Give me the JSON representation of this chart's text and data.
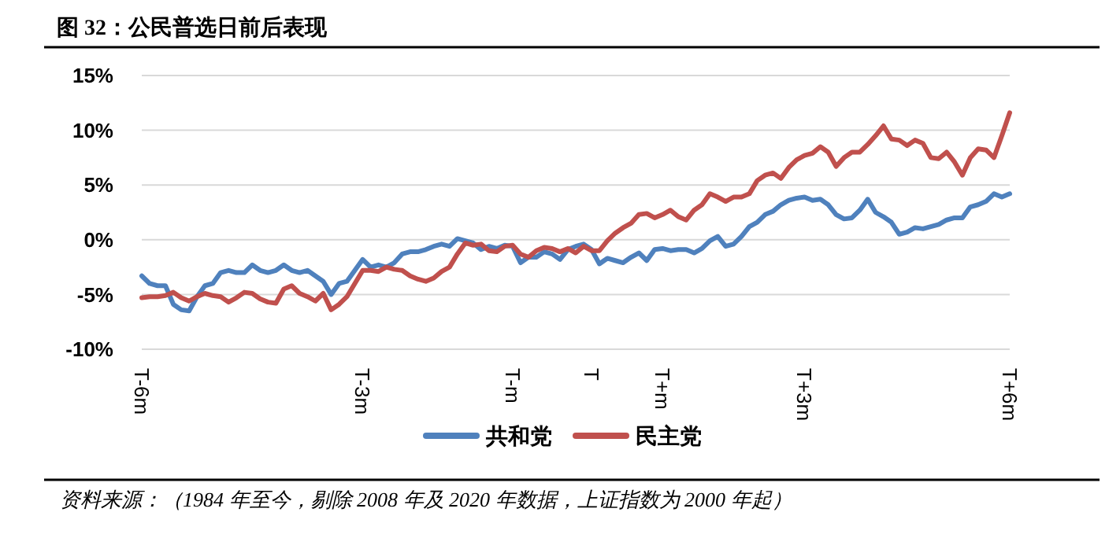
{
  "chart_data": {
    "type": "line",
    "title": "图 32：公民普选日前后表现",
    "annotations": [
      "资料来源：（1984 年至今，剔除 2008 年及 2020 年数据，上证指数为 2000 年起）"
    ],
    "categories": [
      "T-6m",
      null,
      null,
      null,
      null,
      null,
      null,
      null,
      null,
      null,
      null,
      null,
      null,
      null,
      null,
      null,
      null,
      null,
      null,
      null,
      null,
      null,
      null,
      null,
      null,
      null,
      null,
      null,
      "T-3m",
      null,
      null,
      null,
      null,
      null,
      null,
      null,
      null,
      null,
      null,
      null,
      null,
      null,
      null,
      null,
      null,
      null,
      null,
      "T-m",
      null,
      null,
      null,
      null,
      null,
      null,
      null,
      null,
      null,
      "T",
      null,
      null,
      null,
      null,
      null,
      null,
      null,
      null,
      "T+m",
      null,
      null,
      null,
      null,
      null,
      null,
      null,
      null,
      null,
      null,
      null,
      null,
      null,
      null,
      null,
      null,
      null,
      "T+3m",
      null,
      null,
      null,
      null,
      null,
      null,
      null,
      null,
      null,
      null,
      null,
      null,
      null,
      null,
      null,
      null,
      null,
      null,
      null,
      null,
      null,
      null,
      null,
      null,
      null,
      "T+6m"
    ],
    "series": [
      {
        "name": "共和党",
        "color": "#4f81bd",
        "values": [
          -3.3,
          -4.0,
          -4.2,
          -4.2,
          -5.9,
          -6.4,
          -6.5,
          -5.2,
          -4.2,
          -4.0,
          -3.0,
          -2.8,
          -3.0,
          -3.0,
          -2.3,
          -2.8,
          -3.0,
          -2.8,
          -2.3,
          -2.8,
          -3.0,
          -2.8,
          -3.3,
          -3.8,
          -5.0,
          -4.0,
          -3.8,
          -2.8,
          -1.8,
          -2.5,
          -2.3,
          -2.5,
          -2.1,
          -1.3,
          -1.1,
          -1.1,
          -0.9,
          -0.6,
          -0.4,
          -0.6,
          0.1,
          -0.1,
          -0.3,
          -0.9,
          -0.6,
          -0.8,
          -0.5,
          -0.6,
          -2.1,
          -1.6,
          -1.6,
          -1.1,
          -1.3,
          -1.8,
          -0.9,
          -0.6,
          -0.4,
          -0.9,
          -2.2,
          -1.7,
          -1.9,
          -2.1,
          -1.6,
          -1.2,
          -1.9,
          -0.9,
          -0.8,
          -1.0,
          -0.9,
          -0.9,
          -1.2,
          -0.8,
          -0.1,
          0.3,
          -0.6,
          -0.4,
          0.3,
          1.2,
          1.6,
          2.3,
          2.6,
          3.2,
          3.6,
          3.8,
          3.9,
          3.6,
          3.7,
          3.2,
          2.3,
          1.9,
          2.0,
          2.7,
          3.7,
          2.5,
          2.1,
          1.6,
          0.5,
          0.7,
          1.1,
          1.0,
          1.2,
          1.4,
          1.8,
          2.0,
          2.0,
          3.0,
          3.2,
          3.5,
          4.2,
          3.9,
          4.2
        ]
      },
      {
        "name": "民主党",
        "color": "#c0504d",
        "values": [
          -5.3,
          -5.2,
          -5.2,
          -5.1,
          -4.8,
          -5.3,
          -5.6,
          -5.2,
          -4.9,
          -5.1,
          -5.2,
          -5.7,
          -5.3,
          -4.8,
          -4.9,
          -5.4,
          -5.7,
          -5.8,
          -4.5,
          -4.2,
          -4.9,
          -5.2,
          -5.6,
          -4.9,
          -6.4,
          -5.9,
          -5.2,
          -4.0,
          -2.8,
          -2.8,
          -2.9,
          -2.5,
          -2.7,
          -2.8,
          -3.3,
          -3.6,
          -3.8,
          -3.5,
          -2.9,
          -2.5,
          -1.3,
          -0.3,
          -0.5,
          -0.4,
          -1.0,
          -1.1,
          -0.6,
          -0.5,
          -1.3,
          -1.6,
          -1.0,
          -0.7,
          -0.8,
          -1.1,
          -0.8,
          -1.2,
          -0.6,
          -1.0,
          -1.0,
          -0.1,
          0.6,
          1.1,
          1.5,
          2.3,
          2.4,
          2.0,
          2.3,
          2.7,
          2.1,
          1.8,
          2.7,
          3.2,
          4.2,
          3.9,
          3.5,
          3.9,
          3.9,
          4.2,
          5.4,
          5.9,
          6.1,
          5.6,
          6.6,
          7.3,
          7.7,
          7.9,
          8.5,
          8.0,
          6.7,
          7.5,
          8.0,
          8.0,
          8.7,
          9.5,
          10.4,
          9.2,
          9.1,
          8.6,
          9.1,
          8.8,
          7.5,
          7.4,
          8.0,
          7.1,
          5.9,
          7.5,
          8.3,
          8.2,
          7.5,
          9.5,
          11.6
        ]
      }
    ],
    "ylim": [
      -10,
      15
    ],
    "yticks": [
      {
        "value": -10,
        "label": "-10%"
      },
      {
        "value": -5,
        "label": "-5%"
      },
      {
        "value": 0,
        "label": "0%"
      },
      {
        "value": 5,
        "label": "5%"
      },
      {
        "value": 10,
        "label": "10%"
      },
      {
        "value": 15,
        "label": "15%"
      }
    ],
    "grid": "y",
    "legend": "bottom",
    "marker": "none",
    "line_style": "solid"
  }
}
